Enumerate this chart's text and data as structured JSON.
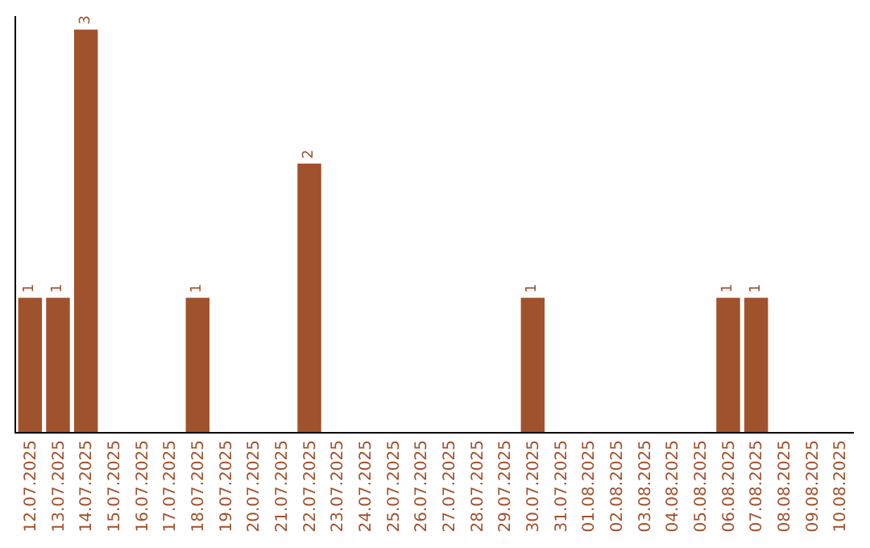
{
  "chart_data": {
    "type": "bar",
    "categories": [
      "12.07.2025",
      "13.07.2025",
      "14.07.2025",
      "15.07.2025",
      "16.07.2025",
      "17.07.2025",
      "18.07.2025",
      "19.07.2025",
      "20.07.2025",
      "21.07.2025",
      "22.07.2025",
      "23.07.2025",
      "24.07.2025",
      "25.07.2025",
      "26.07.2025",
      "27.07.2025",
      "28.07.2025",
      "29.07.2025",
      "30.07.2025",
      "31.07.2025",
      "01.08.2025",
      "02.08.2025",
      "03.08.2025",
      "04.08.2025",
      "05.08.2025",
      "06.08.2025",
      "07.08.2025",
      "08.08.2025",
      "09.08.2025",
      "10.08.2025"
    ],
    "values": [
      1,
      1,
      3,
      0,
      0,
      0,
      1,
      0,
      0,
      0,
      2,
      0,
      0,
      0,
      0,
      0,
      0,
      0,
      1,
      0,
      0,
      0,
      0,
      0,
      0,
      1,
      1,
      0,
      0,
      0
    ],
    "value_labels": [
      "1",
      "1",
      "3",
      null,
      null,
      null,
      "1",
      null,
      null,
      null,
      "2",
      null,
      null,
      null,
      null,
      null,
      null,
      null,
      "1",
      null,
      null,
      null,
      null,
      null,
      null,
      "1",
      "1",
      null,
      null,
      null
    ],
    "color": "#a0522d",
    "ylim": [
      0,
      3.1
    ],
    "tick_labels": "x"
  }
}
